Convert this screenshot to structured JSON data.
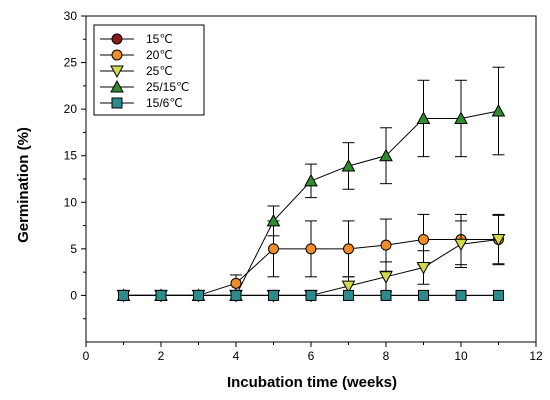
{
  "chart_data": {
    "type": "line",
    "xlabel": "Incubation time (weeks)",
    "ylabel": "Germination (%)",
    "xlim": [
      0,
      12
    ],
    "ylim": [
      -5,
      30
    ],
    "xticks": [
      0,
      2,
      4,
      6,
      8,
      10,
      12
    ],
    "yticks": [
      0,
      5,
      10,
      15,
      20,
      25,
      30
    ],
    "grid": false,
    "legend_position": "top-left",
    "series": [
      {
        "name": "15℃",
        "marker": "circle",
        "color": "#8B1A1A",
        "x": [
          1,
          2,
          3,
          4,
          5,
          6,
          7,
          8,
          9,
          10,
          11
        ],
        "y": [
          0,
          0,
          0,
          0,
          0,
          0,
          0,
          0,
          0,
          0,
          0
        ],
        "err": [
          0,
          0,
          0,
          0,
          0,
          0,
          0,
          0,
          0,
          0,
          0
        ]
      },
      {
        "name": "20℃",
        "marker": "circle",
        "color": "#F28C28",
        "x": [
          1,
          2,
          3,
          4,
          5,
          6,
          7,
          8,
          9,
          10,
          11
        ],
        "y": [
          0,
          0,
          0,
          1.3,
          5,
          5,
          5,
          5.4,
          6,
          6,
          6
        ],
        "err": [
          0,
          0,
          0,
          0.9,
          3,
          3,
          3,
          2.8,
          2.7,
          2.7,
          2.7
        ]
      },
      {
        "name": "25℃",
        "marker": "triangle-down",
        "color": "#D4D84A",
        "x": [
          1,
          2,
          3,
          4,
          5,
          6,
          7,
          8,
          9,
          10,
          11
        ],
        "y": [
          0,
          0,
          0,
          0,
          0,
          0,
          1,
          2,
          3,
          5.5,
          6
        ],
        "err": [
          0,
          0,
          0,
          0,
          0,
          0,
          1,
          1.6,
          1.8,
          2.5,
          2.6
        ]
      },
      {
        "name": "25/15℃",
        "marker": "triangle-up",
        "color": "#2E8B2E",
        "x": [
          1,
          2,
          3,
          4,
          5,
          6,
          7,
          8,
          9,
          10,
          11
        ],
        "y": [
          0,
          0,
          0,
          0,
          8,
          12.3,
          13.9,
          15,
          19,
          19,
          19.8
        ],
        "err": [
          0,
          0,
          0,
          0,
          1.6,
          1.8,
          2.5,
          3,
          4.1,
          4.1,
          4.7
        ]
      },
      {
        "name": "15/6℃",
        "marker": "square",
        "color": "#2A8C8C",
        "x": [
          1,
          2,
          3,
          4,
          5,
          6,
          7,
          8,
          9,
          10,
          11
        ],
        "y": [
          0,
          0,
          0,
          0,
          0,
          0,
          0,
          0,
          0,
          0,
          0
        ],
        "err": [
          0,
          0,
          0,
          0,
          0,
          0,
          0,
          0,
          0,
          0,
          0
        ]
      }
    ]
  }
}
